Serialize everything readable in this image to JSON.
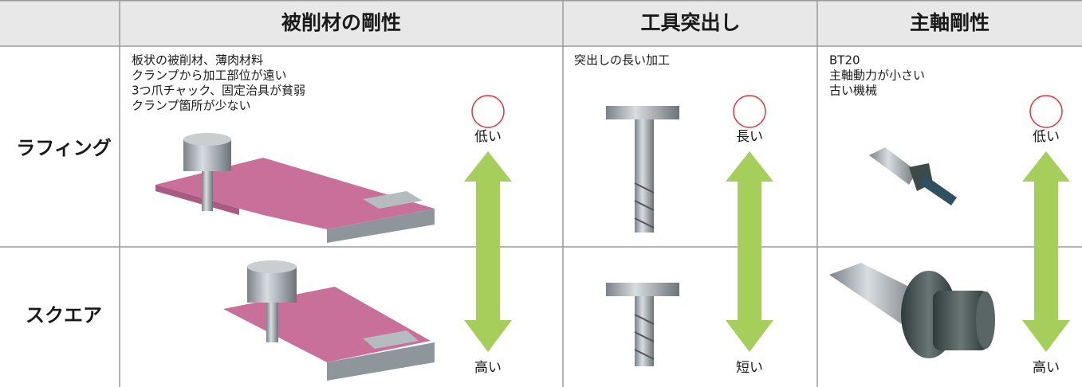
{
  "header": {
    "columns": [
      "被削材の剛性",
      "工具突出し",
      "主軸剛性"
    ]
  },
  "rows": [
    {
      "label": "ラフィング"
    },
    {
      "label": "スクエア"
    }
  ],
  "columns": [
    {
      "description": [
        "板状の被削材、薄肉材料",
        "クランプから加工部位が遠い",
        "3つ爪チャック、固定治具が貧弱",
        "クランプ箇所が少ない"
      ],
      "scale_top": "低い",
      "scale_bottom": "高い"
    },
    {
      "description": [
        "突出しの長い加工"
      ],
      "scale_top": "長い",
      "scale_bottom": "短い"
    },
    {
      "description": [
        "BT20",
        "主軸動力が小さい",
        "古い機械"
      ],
      "scale_top": "低い",
      "scale_bottom": "高い"
    }
  ]
}
